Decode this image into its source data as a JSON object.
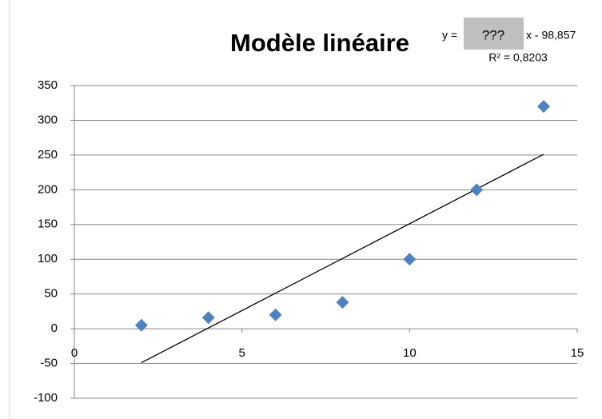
{
  "chart_data": {
    "type": "scatter",
    "title": "Modèle linéaire",
    "annotations": [
      "y = ",
      "???",
      "x - 98,857",
      "R² = 0,8203"
    ],
    "x": [
      2,
      4,
      6,
      8,
      10,
      12,
      14
    ],
    "values": [
      5,
      16,
      20,
      38,
      100,
      200,
      320
    ],
    "color": "#4f81bd",
    "trendline": {
      "x": [
        2,
        14
      ],
      "values": [
        -48.857,
        251.143
      ],
      "color": "#000000"
    },
    "xlim": [
      0,
      15
    ],
    "xticks": [
      0,
      5,
      10,
      15
    ],
    "ylim": [
      -100,
      350
    ],
    "yticks": [
      -100,
      -50,
      0,
      50,
      100,
      150,
      200,
      250,
      300,
      350
    ],
    "grid": true
  }
}
